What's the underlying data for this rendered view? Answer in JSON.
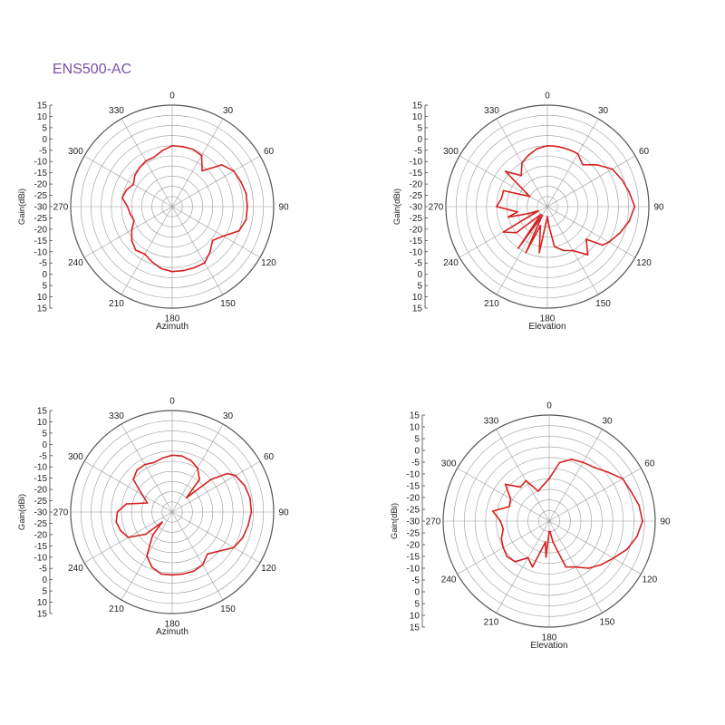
{
  "title": "ENS500-AC",
  "colors": {
    "trace": "#d62020",
    "grid": "#9a9a9a",
    "text": "#222222",
    "title": "#7b4fa6"
  },
  "chart_data": [
    {
      "type": "polar-line",
      "xlabel": "Azimuth",
      "ylabel": "Gain(dBi)",
      "angle_ticks": [
        "0",
        "30",
        "60",
        "90",
        "120",
        "150",
        "180",
        "210",
        "240",
        "270",
        "300",
        "330"
      ],
      "rlim": [
        -35,
        15
      ],
      "radial_tick_labels": [
        "15",
        "10",
        "5",
        "0",
        "-5",
        "-10",
        "-15",
        "-20",
        "-25",
        "-30",
        "-25",
        "-20",
        "-15",
        "-10",
        "-5",
        "0",
        "5",
        "10",
        "15"
      ],
      "grid": true,
      "series": [
        {
          "theta": [
            0,
            10,
            20,
            30,
            40,
            50,
            60,
            70,
            80,
            90,
            100,
            110,
            120,
            130,
            140,
            150,
            160,
            170,
            180,
            190,
            200,
            210,
            220,
            230,
            240,
            250,
            260,
            270,
            280,
            290,
            300,
            310,
            320,
            330,
            340,
            350
          ],
          "gain": [
            -5,
            -5,
            -5,
            -6,
            -12,
            -3,
            0,
            1,
            2,
            2,
            2,
            0,
            -6,
            -9,
            -6,
            -3,
            -3,
            -3,
            -3,
            -4,
            -6,
            -8,
            -7,
            -9,
            -12,
            -15,
            -14,
            -13,
            -10,
            -11,
            -13,
            -11,
            -10,
            -9,
            -9,
            -7
          ]
        }
      ]
    },
    {
      "type": "polar-line",
      "xlabel": "Elevation",
      "ylabel": "Gain(dBi)",
      "angle_ticks": [
        "0",
        "30",
        "60",
        "90",
        "120",
        "150",
        "180",
        "210",
        "240",
        "270",
        "300",
        "330"
      ],
      "rlim": [
        -35,
        15
      ],
      "radial_tick_labels": [
        "15",
        "10",
        "5",
        "0",
        "-5",
        "-10",
        "-15",
        "-20",
        "-25",
        "-30",
        "-25",
        "-20",
        "-15",
        "-10",
        "-5",
        "0",
        "5",
        "10",
        "15"
      ],
      "grid": true,
      "series": [
        {
          "theta": [
            0,
            5,
            10,
            15,
            20,
            25,
            30,
            40,
            50,
            60,
            70,
            80,
            90,
            100,
            110,
            120,
            125,
            130,
            140,
            150,
            160,
            170,
            175,
            180,
            190,
            200,
            205,
            210,
            215,
            220,
            230,
            240,
            245,
            250,
            255,
            260,
            270,
            280,
            290,
            300,
            310,
            320,
            330,
            340,
            350
          ],
          "gain": [
            -5,
            -5,
            -5,
            -5,
            -5,
            -5,
            -5,
            -8,
            -3,
            2,
            4,
            6,
            8,
            6,
            3,
            0,
            -2,
            -10,
            -4,
            -10,
            -12,
            -15,
            -25,
            -30,
            -12,
            -25,
            -10,
            -30,
            -10,
            -30,
            -15,
            -10,
            -30,
            -25,
            -15,
            -20,
            -10,
            -12,
            -12,
            -25,
            -8,
            -15,
            -10,
            -8,
            -6
          ]
        }
      ]
    },
    {
      "type": "polar-line",
      "xlabel": "Azimuth",
      "ylabel": "Gain(dBi)",
      "angle_ticks": [
        "0",
        "30",
        "60",
        "90",
        "120",
        "150",
        "180",
        "210",
        "240",
        "270",
        "300",
        "330"
      ],
      "rlim": [
        -35,
        15
      ],
      "radial_tick_labels": [
        "15",
        "10",
        "5",
        "0",
        "-5",
        "-10",
        "-15",
        "-20",
        "-25",
        "-30",
        "-25",
        "-20",
        "-15",
        "-10",
        "-5",
        "0",
        "5",
        "10",
        "15"
      ],
      "grid": true,
      "series": [
        {
          "theta": [
            0,
            10,
            20,
            30,
            40,
            45,
            50,
            55,
            60,
            70,
            80,
            90,
            100,
            110,
            120,
            130,
            140,
            150,
            160,
            170,
            180,
            190,
            200,
            210,
            220,
            225,
            230,
            240,
            250,
            260,
            270,
            280,
            290,
            300,
            310,
            320,
            330,
            340,
            350
          ],
          "gain": [
            -7,
            -7,
            -8,
            -10,
            -14,
            -25,
            -10,
            -2,
            1,
            3,
            4,
            4,
            3,
            2,
            0,
            -5,
            -8,
            -5,
            -4,
            -4,
            -4,
            -4,
            -6,
            -10,
            -20,
            -28,
            -18,
            -10,
            -8,
            -7,
            -8,
            -12,
            -22,
            -18,
            -10,
            -8,
            -8,
            -9,
            -8
          ]
        }
      ]
    },
    {
      "type": "polar-line",
      "xlabel": "Elevation",
      "ylabel": "Gain(dBi)",
      "angle_ticks": [
        "0",
        "30",
        "60",
        "90",
        "120",
        "150",
        "180",
        "210",
        "240",
        "270",
        "300",
        "330"
      ],
      "rlim": [
        -35,
        15
      ],
      "radial_tick_labels": [
        "15",
        "10",
        "5",
        "0",
        "-5",
        "-10",
        "-15",
        "-20",
        "-25",
        "-30",
        "-25",
        "-20",
        "-15",
        "-10",
        "-5",
        "0",
        "5",
        "10",
        "15"
      ],
      "grid": true,
      "series": [
        {
          "theta": [
            0,
            10,
            20,
            30,
            40,
            50,
            60,
            70,
            80,
            90,
            100,
            110,
            120,
            130,
            140,
            150,
            160,
            170,
            175,
            180,
            185,
            190,
            200,
            210,
            220,
            230,
            240,
            250,
            260,
            270,
            280,
            290,
            300,
            310,
            320,
            330,
            340,
            350
          ],
          "gain": [
            -15,
            -7,
            -4,
            -3,
            -2,
            1,
            5,
            6,
            8,
            9,
            7,
            4,
            0,
            -3,
            -6,
            -10,
            -12,
            -25,
            -30,
            -30,
            -18,
            -25,
            -12,
            -15,
            -10,
            -9,
            -10,
            -11,
            -13,
            -12,
            -8,
            -15,
            -14,
            -8,
            -14,
            -13,
            -20,
            -18
          ]
        }
      ]
    }
  ]
}
